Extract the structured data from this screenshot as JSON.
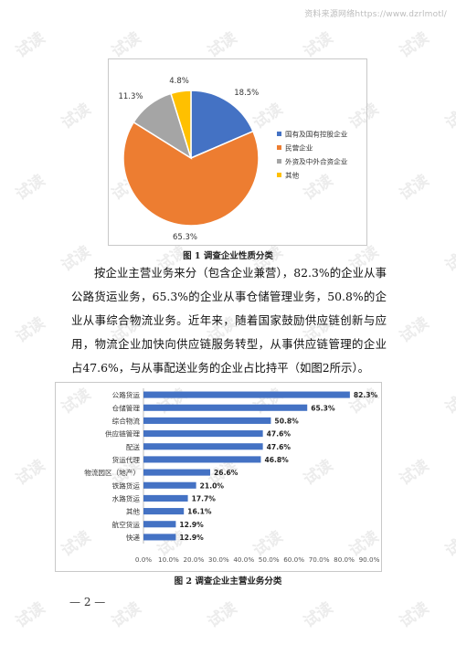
{
  "watermark_url": "资料来源网络https://www.dzrlmotl/",
  "watermark_text": "试读",
  "figure1": {
    "caption": "图 1 调查企业性质分类",
    "chart_data": {
      "type": "pie",
      "slices": [
        {
          "label": "国有及国有控股企业",
          "value": 18.5,
          "display": "18.5%",
          "color": "#4472c4"
        },
        {
          "label": "民营企业",
          "value": 65.3,
          "display": "65.3%",
          "color": "#ed7d31"
        },
        {
          "label": "外资及中外合资企业",
          "value": 11.3,
          "display": "11.3%",
          "color": "#a5a5a5"
        },
        {
          "label": "其他",
          "value": 4.8,
          "display": "4.8%",
          "color": "#ffc000"
        }
      ],
      "legend_position": "right"
    }
  },
  "paragraph": "按企业主营业务来分（包含企业兼营），82.3%的企业从事公路货运业务，65.3%的企业从事仓储管理业务，50.8%的企业从事综合物流业务。近年来，随着国家鼓励供应链创新与应用，物流企业加快向供应链服务转型，从事供应链管理的企业占47.6%，与从事配送业务的企业占比持平（如图2所示）。",
  "figure2": {
    "caption": "图 2 调查企业主营业务分类",
    "chart_data": {
      "type": "bar",
      "orientation": "horizontal",
      "categories": [
        "公路货运",
        "仓储管理",
        "综合物流",
        "供应链管理",
        "配送",
        "货运代理",
        "物流园区（地产）",
        "铁路货运",
        "水路货运",
        "其他",
        "航空货运",
        "快递"
      ],
      "values": [
        82.3,
        65.3,
        50.8,
        47.6,
        47.6,
        46.8,
        26.6,
        21.0,
        17.7,
        16.1,
        12.9,
        12.9
      ],
      "value_labels": [
        "82.3%",
        "65.3%",
        "50.8%",
        "47.6%",
        "47.6%",
        "46.8%",
        "26.6%",
        "21.0%",
        "17.7%",
        "16.1%",
        "12.9%",
        "12.9%"
      ],
      "x_ticks": [
        "0.0%",
        "10.0%",
        "20.0%",
        "30.0%",
        "40.0%",
        "50.0%",
        "60.0%",
        "70.0%",
        "80.0%",
        "90.0%"
      ],
      "xlim": [
        0,
        90
      ],
      "bar_color": "#4472c4",
      "grid": false
    }
  },
  "page_number": "— 2 —"
}
